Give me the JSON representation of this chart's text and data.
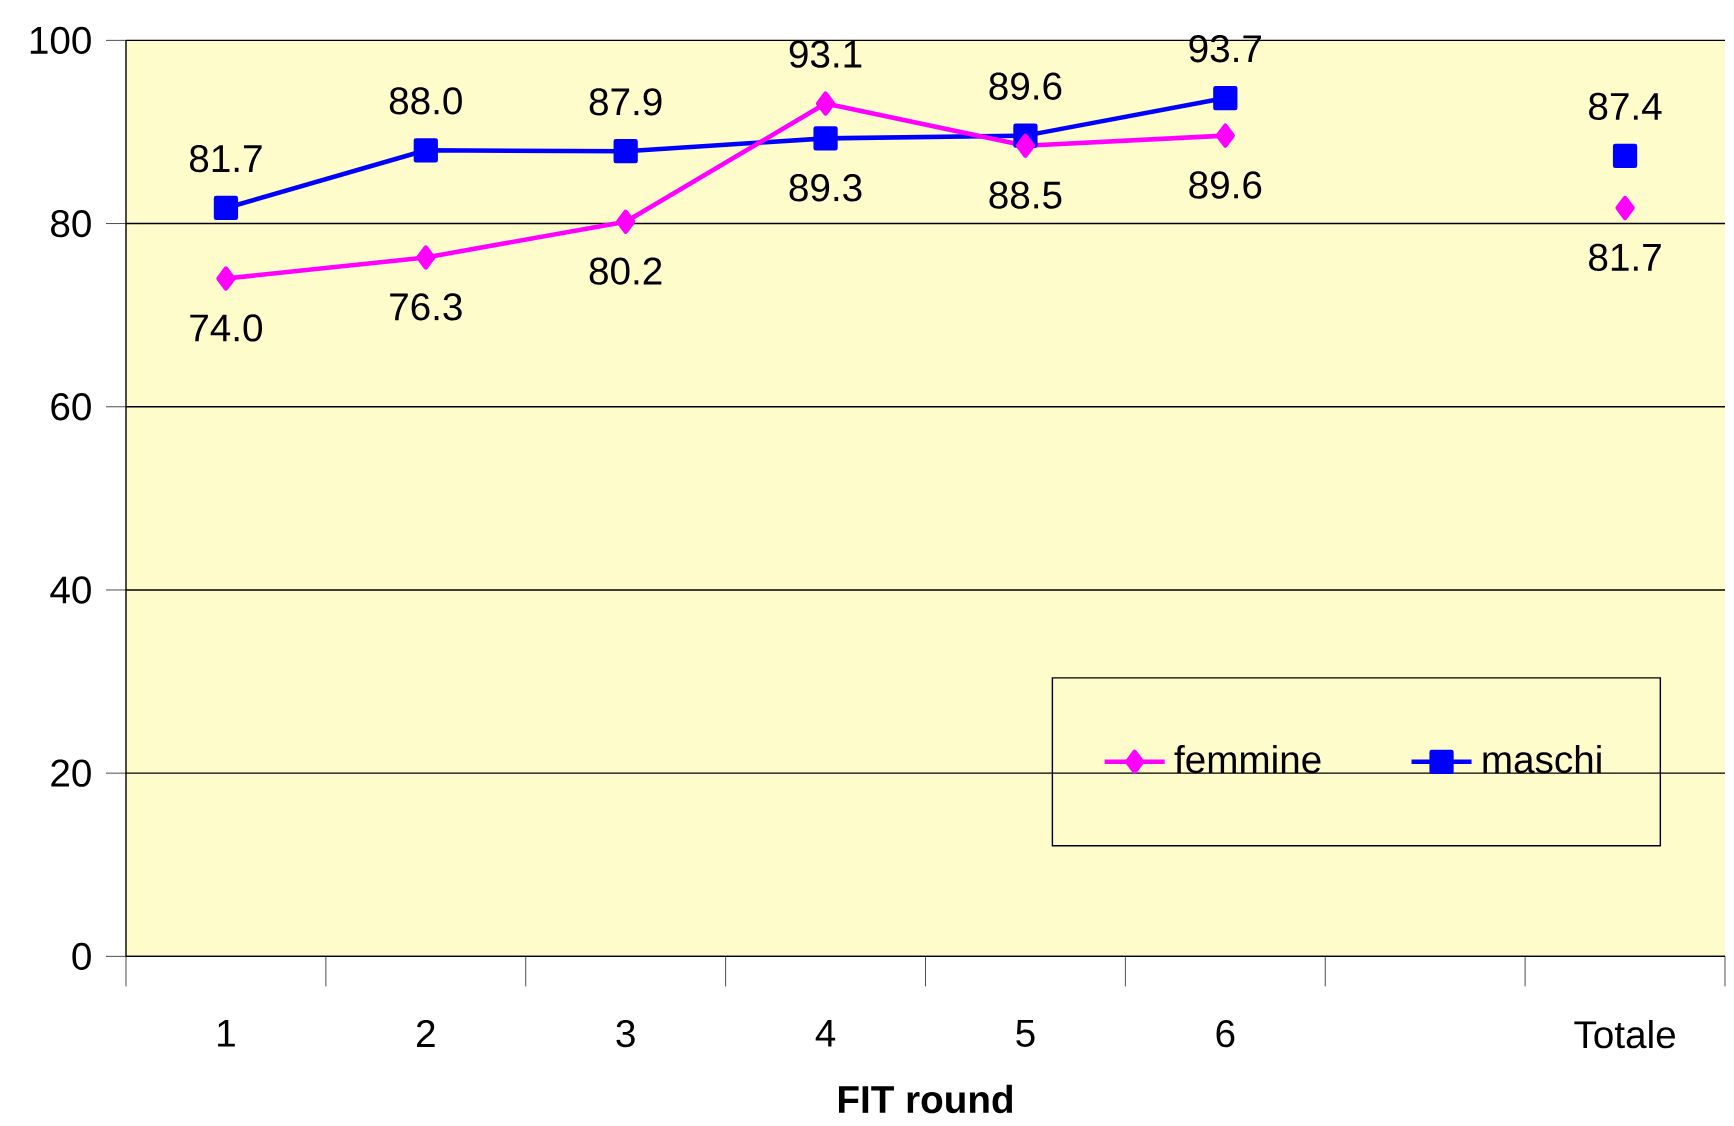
{
  "chart_data": {
    "type": "line",
    "xlabel": "**FIT round**",
    "categories": [
      "1",
      "2",
      "3",
      "4",
      "5",
      "6",
      null,
      "Totale"
    ],
    "series": [
      {
        "name": "femmine",
        "color": "#ff00ff",
        "marker": "diamond",
        "values": [
          74.0,
          76.3,
          80.2,
          93.1,
          88.5,
          89.6,
          null,
          81.7
        ],
        "value_labels": [
          "74.0",
          "76.3",
          "80.2",
          "93.1",
          "88.5",
          "89.6",
          null,
          "81.7"
        ]
      },
      {
        "name": "maschi",
        "color": "#0000ff",
        "marker": "square",
        "values": [
          81.7,
          88.0,
          87.9,
          89.3,
          89.6,
          93.7,
          null,
          87.4
        ],
        "value_labels": [
          "81.7",
          "88.0",
          "87.9",
          "89.3",
          "89.6",
          "93.7",
          null,
          "87.4"
        ]
      }
    ],
    "ylim": [
      0,
      100
    ],
    "yticks": [
      0,
      20,
      40,
      60,
      80,
      100
    ],
    "grid": "y",
    "legend": "bottom right",
    "line_style": "solid"
  }
}
